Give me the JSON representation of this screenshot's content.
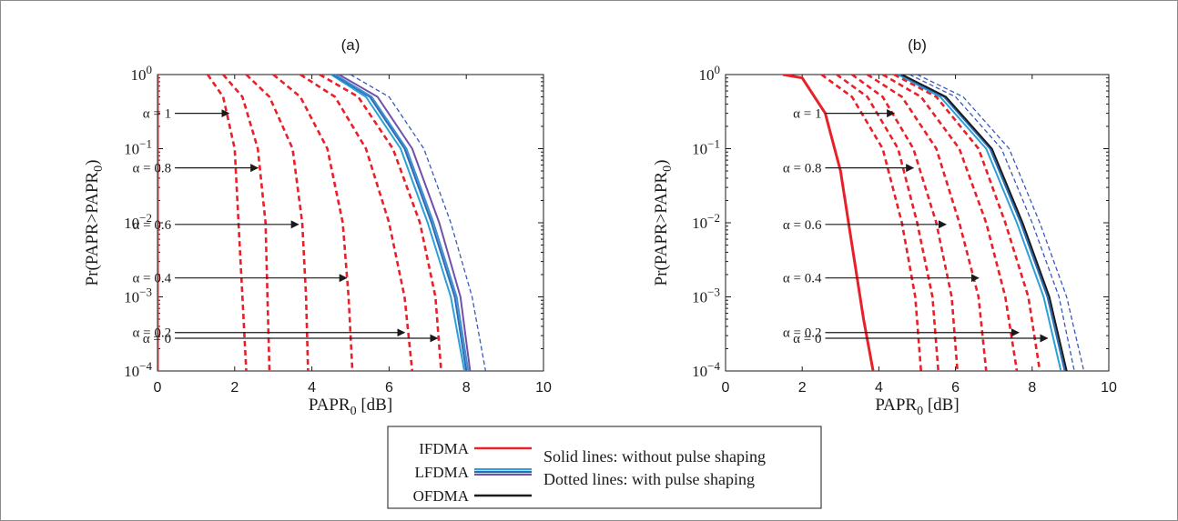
{
  "chart_data": [
    {
      "panel": "a",
      "type": "line",
      "title": "(a)",
      "xlabel": "PAPR0 [dB]",
      "ylabel": "Pr(PAPR>PAPR0)",
      "xlim": [
        0,
        10
      ],
      "xticks": [
        "0",
        "2",
        "4",
        "6",
        "8",
        "10"
      ],
      "ylim": [
        0.0001,
        1
      ],
      "yscale": "log",
      "yticks": [
        "10^0",
        "10^-1",
        "10^-2",
        "10^-3",
        "10^-4"
      ],
      "grid": false,
      "series": [
        {
          "group": "IFDMA",
          "style": "solid",
          "color": "#e8202a",
          "x": [
            0.0,
            0.0,
            0.0,
            0.0,
            0.0
          ],
          "y": [
            1,
            0.1,
            0.01,
            0.001,
            0.0001
          ]
        },
        {
          "group": "IFDMA",
          "style": "dashed",
          "alpha": "1",
          "color": "#e8202a",
          "x": [
            1.3,
            1.7,
            2.0,
            2.1,
            2.2,
            2.3
          ],
          "y": [
            1,
            0.5,
            0.1,
            0.01,
            0.001,
            0.0001
          ]
        },
        {
          "group": "IFDMA",
          "style": "dashed",
          "alpha": "0.8",
          "color": "#e8202a",
          "x": [
            1.7,
            2.2,
            2.6,
            2.8,
            2.85,
            2.9
          ],
          "y": [
            1,
            0.5,
            0.1,
            0.01,
            0.001,
            0.0001
          ]
        },
        {
          "group": "IFDMA",
          "style": "dashed",
          "alpha": "0.6",
          "color": "#e8202a",
          "x": [
            2.3,
            2.9,
            3.5,
            3.75,
            3.85,
            3.9
          ],
          "y": [
            1,
            0.5,
            0.1,
            0.01,
            0.001,
            0.0001
          ]
        },
        {
          "group": "IFDMA",
          "style": "dashed",
          "alpha": "0.4",
          "color": "#e8202a",
          "x": [
            3.0,
            3.7,
            4.4,
            4.8,
            4.95,
            5.05
          ],
          "y": [
            1,
            0.5,
            0.1,
            0.01,
            0.001,
            0.0001
          ]
        },
        {
          "group": "IFDMA",
          "style": "dashed",
          "alpha": "0.2",
          "color": "#e8202a",
          "x": [
            3.7,
            4.6,
            5.4,
            6.0,
            6.4,
            6.6
          ],
          "y": [
            1,
            0.5,
            0.1,
            0.01,
            0.001,
            0.0001
          ]
        },
        {
          "group": "IFDMA",
          "style": "dashed",
          "alpha": "0",
          "color": "#e8202a",
          "x": [
            4.2,
            5.2,
            6.1,
            6.8,
            7.2,
            7.35
          ],
          "y": [
            1,
            0.5,
            0.1,
            0.01,
            0.001,
            0.0001
          ]
        },
        {
          "group": "LFDMA",
          "style": "solid",
          "color": "#2ca0d8",
          "x": [
            4.5,
            5.4,
            6.3,
            7.0,
            7.6,
            7.95
          ],
          "y": [
            1,
            0.5,
            0.1,
            0.01,
            0.001,
            0.0001
          ]
        },
        {
          "group": "LFDMA",
          "style": "solid",
          "color": "#2a6cb5",
          "x": [
            4.55,
            5.5,
            6.4,
            7.1,
            7.7,
            8.0
          ],
          "y": [
            1,
            0.5,
            0.1,
            0.01,
            0.001,
            0.0001
          ]
        },
        {
          "group": "LFDMA",
          "style": "solid",
          "color": "#3f8fd0",
          "x": [
            4.6,
            5.55,
            6.45,
            7.15,
            7.75,
            8.05
          ],
          "y": [
            1,
            0.5,
            0.1,
            0.01,
            0.001,
            0.0001
          ]
        },
        {
          "group": "OFDMA",
          "style": "solid",
          "color": "#7050a8",
          "x": [
            4.7,
            5.7,
            6.6,
            7.3,
            7.85,
            8.1
          ],
          "y": [
            1,
            0.5,
            0.1,
            0.01,
            0.001,
            0.0001
          ]
        },
        {
          "group": "OFDMA",
          "style": "dashed",
          "color": "#3a5ab8",
          "x": [
            5.0,
            6.0,
            6.9,
            7.6,
            8.15,
            8.5
          ],
          "y": [
            1,
            0.5,
            0.1,
            0.01,
            0.001,
            0.0001
          ]
        }
      ],
      "annotations": [
        {
          "text": "α = 1",
          "alpha": 1,
          "y": 0.3,
          "x_from": 0.45,
          "x_to": 1.85
        },
        {
          "text": "α = 0.8",
          "alpha": 0.8,
          "y": 0.055,
          "x_from": 0.45,
          "x_to": 2.6
        },
        {
          "text": "α = 0.6",
          "alpha": 0.6,
          "y": 0.0095,
          "x_from": 0.45,
          "x_to": 3.65
        },
        {
          "text": "α = 0.4",
          "alpha": 0.4,
          "y": 0.0018,
          "x_from": 0.45,
          "x_to": 4.9
        },
        {
          "text": "α = 0.2",
          "alpha": 0.2,
          "y": 0.00033,
          "x_from": 0.45,
          "x_to": 6.4
        },
        {
          "text": "α = 0",
          "alpha": 0,
          "y": 0.0001,
          "x_from": 0.45,
          "x_to": 7.25
        }
      ]
    },
    {
      "panel": "b",
      "type": "line",
      "title": "(b)",
      "xlabel": "PAPR0 [dB]",
      "ylabel": "Pr(PAPR>PAPR0)",
      "xlim": [
        0,
        10
      ],
      "xticks": [
        "0",
        "2",
        "4",
        "6",
        "8",
        "10"
      ],
      "ylim": [
        0.0001,
        1
      ],
      "yscale": "log",
      "yticks": [
        "10^0",
        "10^-1",
        "10^-2",
        "10^-3",
        "10^-4"
      ],
      "grid": false,
      "series": [
        {
          "group": "IFDMA",
          "style": "solid",
          "color": "#e8202a",
          "x": [
            1.5,
            2.0,
            2.6,
            3.0,
            3.3,
            3.6,
            3.85
          ],
          "y": [
            1,
            0.9,
            0.3,
            0.05,
            0.005,
            0.0005,
            0.0001
          ]
        },
        {
          "group": "IFDMA",
          "style": "dashed",
          "alpha": "1",
          "color": "#e8202a",
          "x": [
            2.5,
            3.3,
            4.1,
            4.6,
            4.95,
            5.1
          ],
          "y": [
            1,
            0.5,
            0.1,
            0.01,
            0.001,
            0.0001
          ]
        },
        {
          "group": "IFDMA",
          "style": "dashed",
          "alpha": "0.8",
          "color": "#e8202a",
          "x": [
            2.9,
            3.7,
            4.5,
            5.0,
            5.4,
            5.55
          ],
          "y": [
            1,
            0.5,
            0.1,
            0.01,
            0.001,
            0.0001
          ]
        },
        {
          "group": "IFDMA",
          "style": "dashed",
          "alpha": "0.6",
          "color": "#e8202a",
          "x": [
            3.3,
            4.1,
            4.9,
            5.5,
            5.9,
            6.05
          ],
          "y": [
            1,
            0.5,
            0.1,
            0.01,
            0.001,
            0.0001
          ]
        },
        {
          "group": "IFDMA",
          "style": "dashed",
          "alpha": "0.4",
          "color": "#e8202a",
          "x": [
            3.7,
            4.6,
            5.5,
            6.1,
            6.6,
            6.8
          ],
          "y": [
            1,
            0.5,
            0.1,
            0.01,
            0.001,
            0.0001
          ]
        },
        {
          "group": "IFDMA",
          "style": "dashed",
          "alpha": "0.2",
          "color": "#e8202a",
          "x": [
            4.1,
            5.1,
            6.1,
            6.8,
            7.3,
            7.6
          ],
          "y": [
            1,
            0.5,
            0.1,
            0.01,
            0.001,
            0.0001
          ]
        },
        {
          "group": "IFDMA",
          "style": "dashed",
          "alpha": "0",
          "color": "#e8202a",
          "x": [
            4.4,
            5.5,
            6.6,
            7.3,
            7.9,
            8.2
          ],
          "y": [
            1,
            0.5,
            0.1,
            0.01,
            0.001,
            0.0001
          ]
        },
        {
          "group": "LFDMA",
          "style": "solid",
          "color": "#2ca0d8",
          "x": [
            4.5,
            5.6,
            6.8,
            7.6,
            8.3,
            8.75
          ],
          "y": [
            1,
            0.5,
            0.1,
            0.01,
            0.001,
            0.0001
          ]
        },
        {
          "group": "LFDMA",
          "style": "solid",
          "color": "#2a6cb5",
          "x": [
            4.55,
            5.7,
            6.9,
            7.7,
            8.4,
            8.85
          ],
          "y": [
            1,
            0.5,
            0.1,
            0.01,
            0.001,
            0.0001
          ]
        },
        {
          "group": "OFDMA",
          "style": "solid",
          "color": "#1a1a1a",
          "x": [
            4.6,
            5.75,
            6.95,
            7.75,
            8.45,
            8.9
          ],
          "y": [
            1,
            0.5,
            0.1,
            0.01,
            0.001,
            0.0001
          ]
        },
        {
          "group": "LFDMA",
          "style": "dashed",
          "color": "#3a5ab8",
          "x": [
            4.8,
            6.0,
            7.2,
            8.0,
            8.7,
            9.1
          ],
          "y": [
            1,
            0.5,
            0.1,
            0.01,
            0.001,
            0.0001
          ]
        },
        {
          "group": "OFDMA",
          "style": "dashed",
          "color": "#3a5ab8",
          "x": [
            5.0,
            6.2,
            7.4,
            8.2,
            8.9,
            9.35
          ],
          "y": [
            1,
            0.5,
            0.1,
            0.01,
            0.001,
            0.0001
          ]
        }
      ],
      "annotations": [
        {
          "text": "α = 1",
          "alpha": 1,
          "y": 0.3,
          "x_from": 2.6,
          "x_to": 4.4
        },
        {
          "text": "α = 0.8",
          "alpha": 0.8,
          "y": 0.055,
          "x_from": 2.6,
          "x_to": 4.9
        },
        {
          "text": "α = 0.6",
          "alpha": 0.6,
          "y": 0.0095,
          "x_from": 2.6,
          "x_to": 5.75
        },
        {
          "text": "α = 0.4",
          "alpha": 0.4,
          "y": 0.0018,
          "x_from": 2.6,
          "x_to": 6.6
        },
        {
          "text": "α = 0.2",
          "alpha": 0.2,
          "y": 0.00033,
          "x_from": 2.6,
          "x_to": 7.65
        },
        {
          "text": "α = 0",
          "alpha": 0,
          "y": 0.0001,
          "x_from": 2.6,
          "x_to": 8.4
        }
      ]
    }
  ],
  "legend": {
    "placement": "bottom-center",
    "entries": [
      {
        "label": "IFDMA",
        "color": "#e8202a"
      },
      {
        "label": "LFDMA",
        "color": "#2a6cb5",
        "accent_colors": [
          "#2ca0d8",
          "#7050a8"
        ]
      },
      {
        "label": "OFDMA",
        "color": "#1a1a1a"
      }
    ],
    "notes": [
      "Solid lines: without pulse shaping",
      "Dotted lines: with pulse shaping"
    ]
  }
}
